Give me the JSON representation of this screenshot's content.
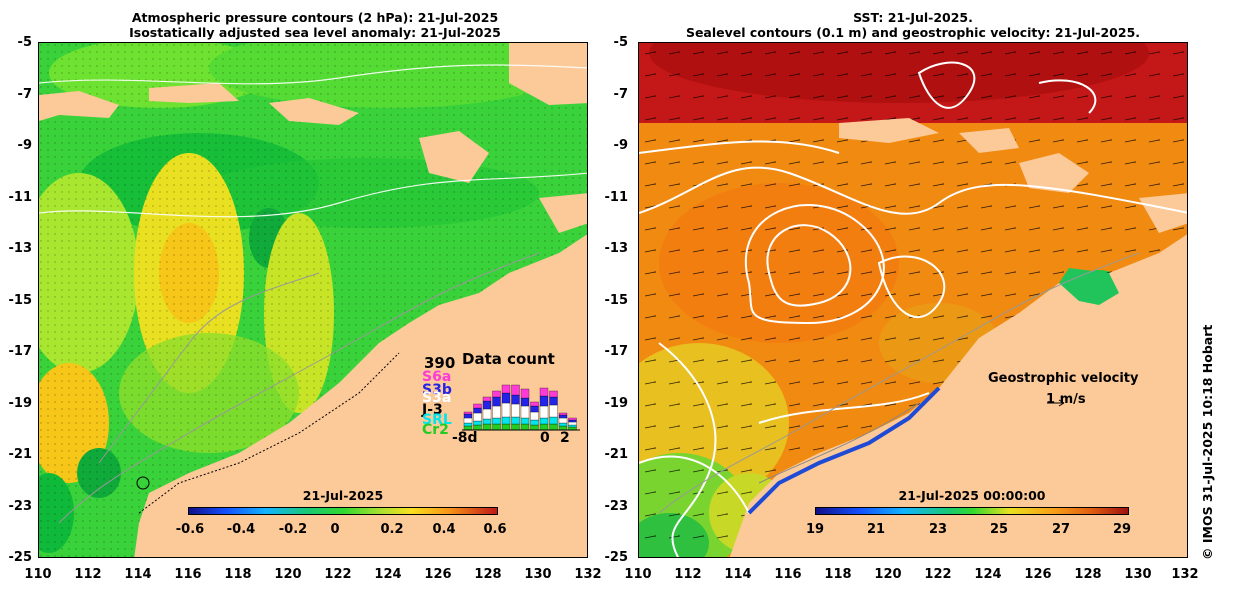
{
  "left_panel": {
    "title_line1": "Atmospheric pressure contours (2 hPa): 21-Jul-2025",
    "title_line2": "Isostatically adjusted sea level anomaly: 21-Jul-2025",
    "colorbar": {
      "date": "21-Jul-2025",
      "ticks": [
        "-0.6",
        "-0.4",
        "-0.2",
        "0",
        "0.2",
        "0.4",
        "0.6"
      ]
    },
    "data_count": {
      "title": "Data count",
      "max": "390",
      "missions": [
        "S6a",
        "S3b",
        "S3a",
        "J-3",
        "SRL",
        "Cr2"
      ],
      "mission_colors": [
        "#ff3ad7",
        "#2424e8",
        "#ffffff",
        "#000000",
        "#00e5ee",
        "#22cc22"
      ],
      "axis_start": "-8d",
      "axis_mid": "0",
      "axis_end": "2"
    }
  },
  "right_panel": {
    "title_line1": "SST: 21-Jul-2025.",
    "title_line2": "Sealevel contours (0.1 m) and geostrophic velocity: 21-Jul-2025.",
    "colorbar": {
      "date": "21-Jul-2025 00:00:00",
      "ticks": [
        "19",
        "21",
        "23",
        "25",
        "27",
        "29"
      ]
    },
    "velocity_legend_title": "Geostrophic velocity",
    "velocity_legend_scale": "1 m/s"
  },
  "axes": {
    "y_ticks": [
      "-5",
      "-7",
      "-9",
      "-11",
      "-13",
      "-15",
      "-17",
      "-19",
      "-21",
      "-23",
      "-25"
    ],
    "x_ticks": [
      "110",
      "112",
      "114",
      "116",
      "118",
      "120",
      "122",
      "124",
      "126",
      "128",
      "130",
      "132"
    ]
  },
  "credit": "© IMOS 31-Jul-2025 10:18 Hobart",
  "colors": {
    "land": "#fcc998",
    "sla_green": "#35d035",
    "sst_orange": "#f08a10",
    "sst_red": "#c01818"
  }
}
